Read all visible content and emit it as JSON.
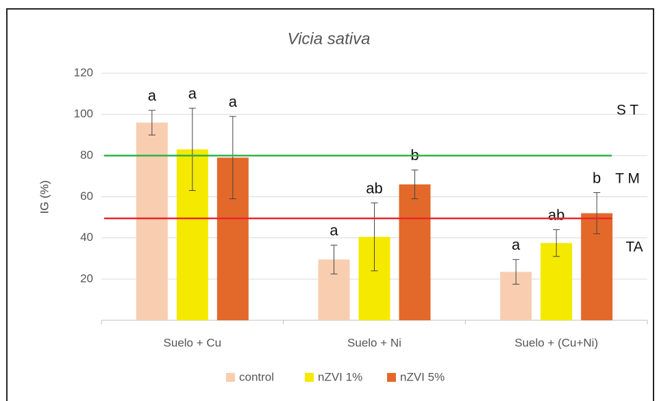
{
  "chart_data": {
    "type": "bar",
    "title": "Vicia sativa",
    "ylabel": "IG (%)",
    "categories": [
      "Suelo + Cu",
      "Suelo + Ni",
      "Suelo + (Cu+Ni)"
    ],
    "series": [
      {
        "name": "control",
        "color": "#f9cdb0",
        "values": [
          96,
          29.5,
          23.5
        ],
        "errors": [
          6,
          7,
          6
        ],
        "letters": [
          "a",
          "a",
          "a"
        ]
      },
      {
        "name": "nZVI 1%",
        "color": "#f5e900",
        "values": [
          83,
          40.5,
          37.5
        ],
        "errors": [
          20,
          16.5,
          6.5
        ],
        "letters": [
          "a",
          "ab",
          "ab"
        ]
      },
      {
        "name": "nZVI 5%",
        "color": "#e2692a",
        "values": [
          79,
          66,
          52
        ],
        "errors": [
          20,
          7,
          10
        ],
        "letters": [
          "a",
          "b",
          "b"
        ]
      }
    ],
    "ylim": [
      0,
      120
    ],
    "yticks": [
      20,
      40,
      60,
      80,
      100,
      120
    ],
    "grid": true,
    "reference_lines": [
      {
        "value": 80,
        "color": "#2db34a"
      },
      {
        "value": 49.5,
        "color": "#e8262b"
      }
    ],
    "zone_labels": [
      "S T",
      "T M",
      "TA"
    ],
    "legend": "bottom"
  }
}
